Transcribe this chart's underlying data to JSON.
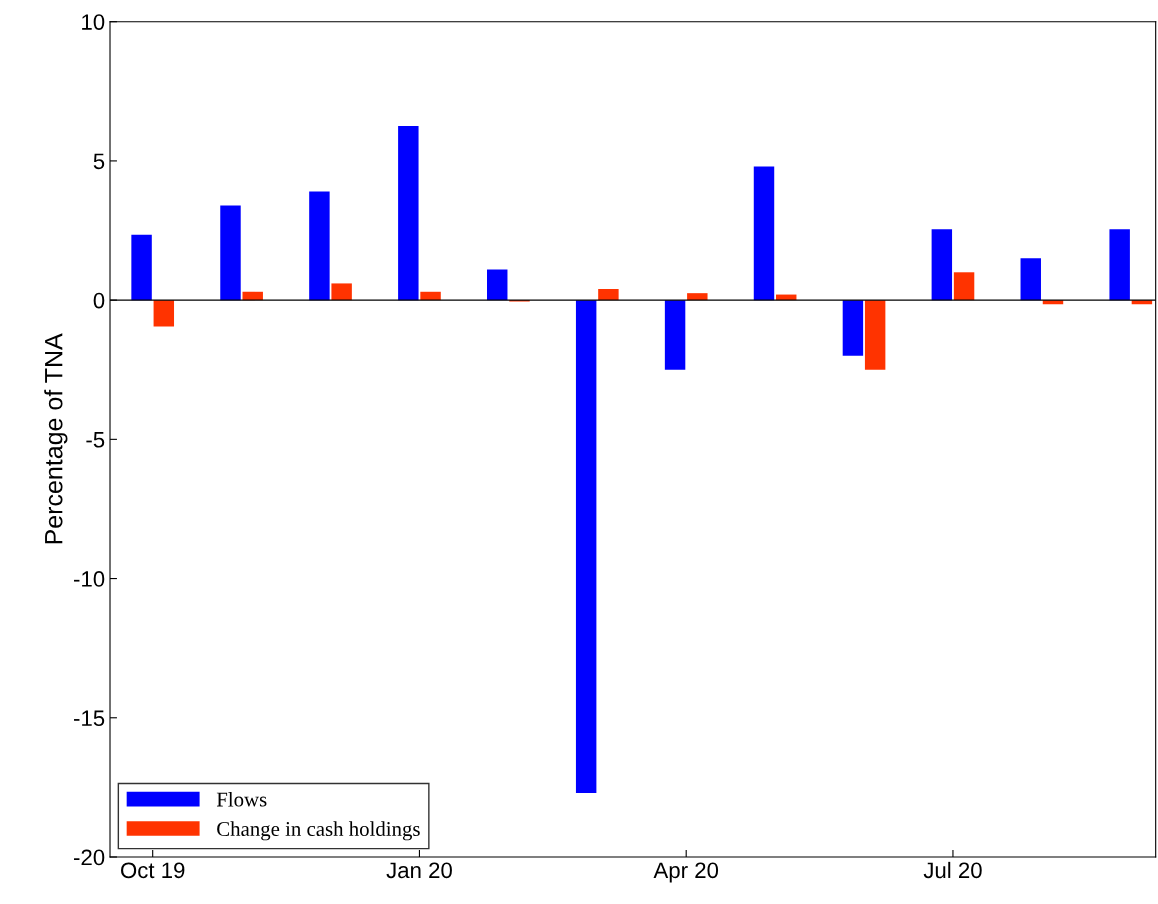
{
  "chart_data": {
    "type": "bar",
    "ylabel": "Percentage of TNA",
    "categories": [
      "Oct 19",
      null,
      null,
      "Jan 20",
      null,
      null,
      "Apr 20",
      null,
      null,
      "Jul 20",
      null,
      null
    ],
    "series": [
      {
        "name": "Flows",
        "color": "#0000ff",
        "values": [
          2.35,
          3.4,
          3.9,
          6.25,
          1.1,
          -17.7,
          -2.5,
          4.8,
          -2.0,
          2.55,
          1.5,
          2.55
        ]
      },
      {
        "name": "Change in cash holdings",
        "color": "#ff3300",
        "values": [
          -0.95,
          0.3,
          0.6,
          0.3,
          -0.05,
          0.4,
          0.25,
          0.2,
          -2.5,
          1.0,
          -0.15,
          -0.15
        ]
      }
    ],
    "ylim": [
      -20,
      10
    ],
    "yticks": [
      -20,
      -15,
      -10,
      -5,
      0,
      5,
      10
    ],
    "ref_lines": [
      {
        "axis": "y",
        "value": 0,
        "color": "#000000"
      }
    ],
    "grid": false,
    "legend": "bottom left"
  }
}
